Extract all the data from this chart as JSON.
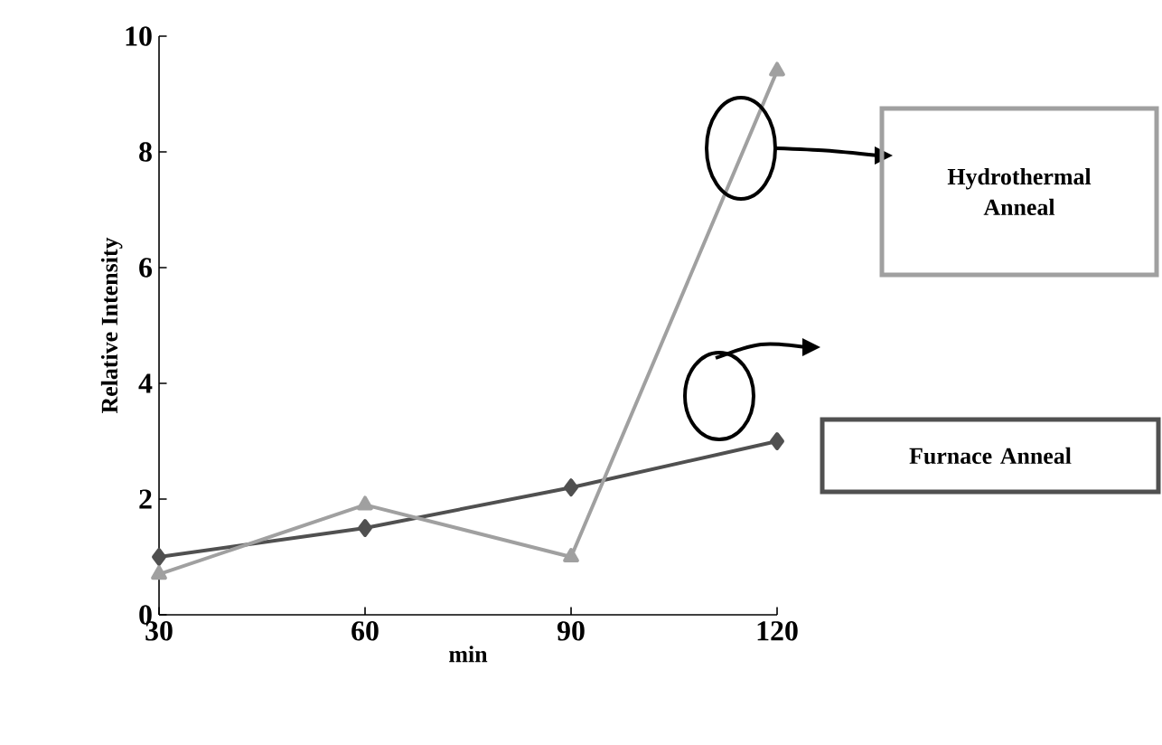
{
  "chart_data": {
    "type": "line",
    "xlabel": "min",
    "ylabel": "Relative Intensity",
    "x": [
      30,
      60,
      90,
      120
    ],
    "xlim": [
      30,
      120
    ],
    "xticks": [
      30,
      60,
      90,
      120
    ],
    "ylim": [
      0,
      10
    ],
    "yticks": [
      0,
      2,
      4,
      6,
      8,
      10
    ],
    "series": [
      {
        "name": "Furnace Anneal",
        "color": "#505050",
        "marker": "diamond",
        "values": [
          1.0,
          1.5,
          2.2,
          3.0
        ]
      },
      {
        "name": "Hydrothermal Anneal",
        "color": "#a0a0a0",
        "marker": "triangle",
        "values": [
          0.7,
          1.9,
          1.0,
          9.4
        ]
      }
    ]
  }
}
